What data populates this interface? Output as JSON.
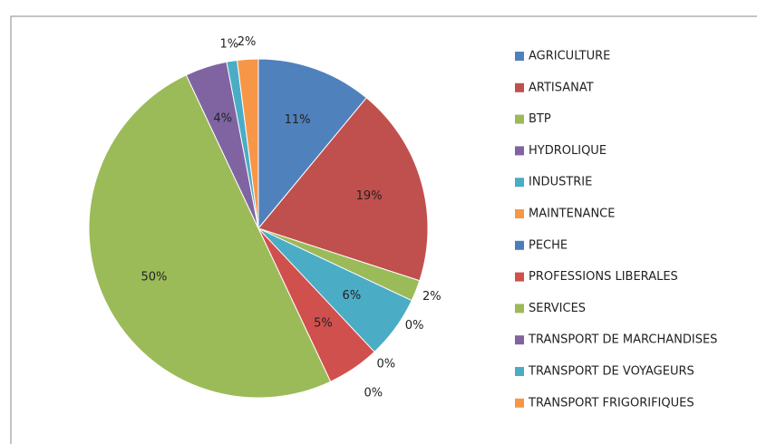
{
  "chart_data": {
    "type": "pie",
    "categories": [
      "AGRICULTURE",
      "ARTISANAT",
      "BTP",
      "HYDROLIQUE",
      "INDUSTRIE",
      "MAINTENANCE",
      "PECHE",
      "PROFESSIONS LIBERALES",
      "SERVICES",
      "TRANSPORT DE MARCHANDISES",
      "TRANSPORT DE VOYAGEURS",
      "TRANSPORT FRIGORIFIQUES"
    ],
    "values": [
      11,
      19,
      2,
      0,
      6,
      0,
      0,
      5,
      50,
      4,
      1,
      2
    ],
    "value_labels": [
      "11%",
      "19%",
      "2%",
      "0%",
      "6%",
      "0%",
      "0%",
      "5%",
      "50%",
      "4%",
      "1%",
      "2%"
    ],
    "colors": [
      "#4f81bd",
      "#c0504d",
      "#9bbb59",
      "#8064a2",
      "#4bacc6",
      "#f79646",
      "#4a7ebb",
      "#d0504d",
      "#9bbb59",
      "#8064a2",
      "#4bacc6",
      "#f79646"
    ],
    "legend": "right"
  }
}
